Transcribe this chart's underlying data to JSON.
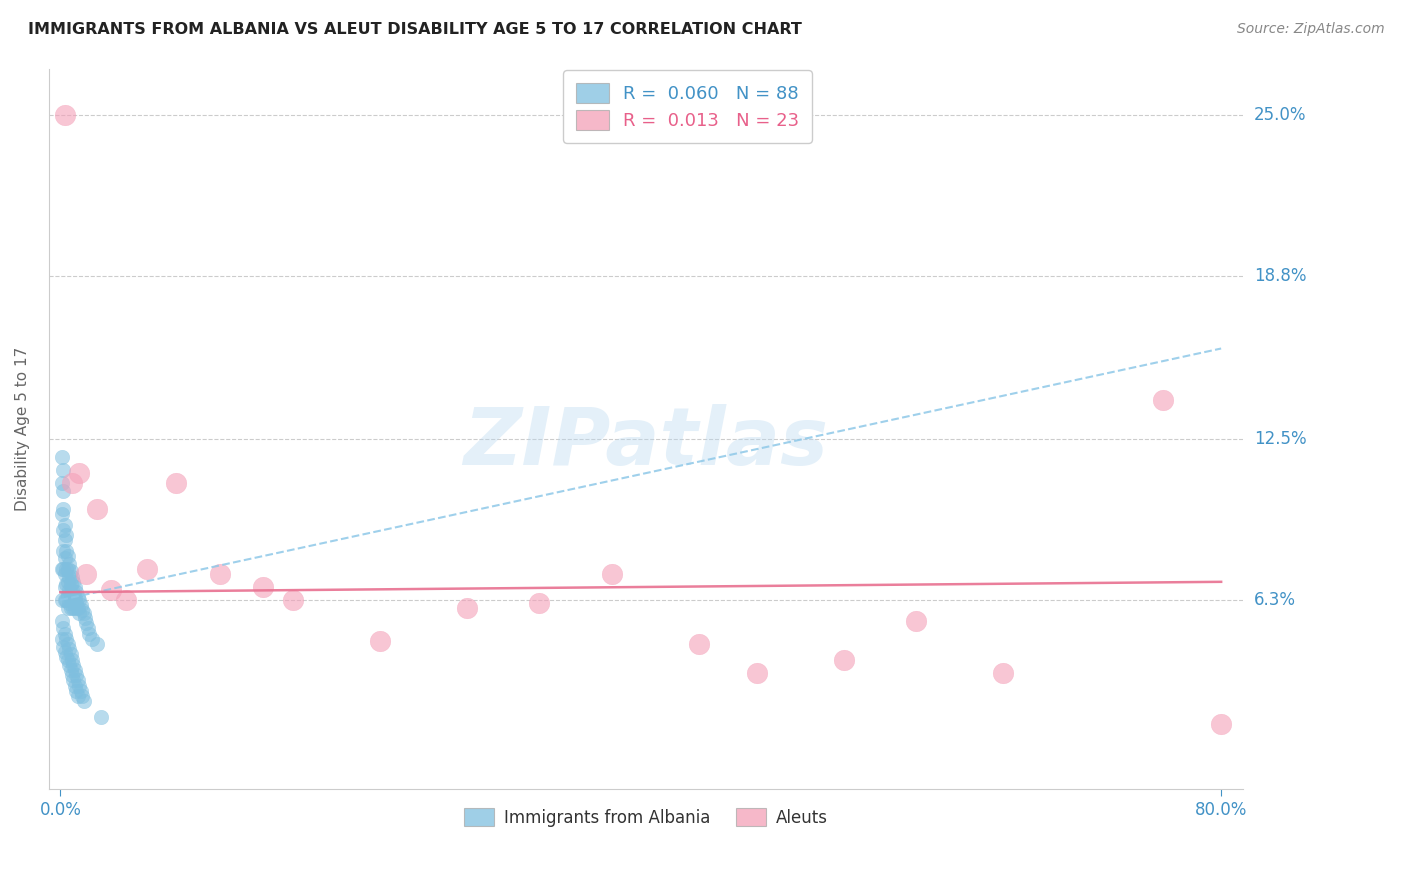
{
  "title": "IMMIGRANTS FROM ALBANIA VS ALEUT DISABILITY AGE 5 TO 17 CORRELATION CHART",
  "source": "Source: ZipAtlas.com",
  "ylabel": "Disability Age 5 to 17",
  "ytick_labels": [
    "6.3%",
    "12.5%",
    "18.8%",
    "25.0%"
  ],
  "ytick_values": [
    0.063,
    0.125,
    0.188,
    0.25
  ],
  "xlim": [
    0.0,
    0.8
  ],
  "ylim": [
    -0.01,
    0.268
  ],
  "R_albania": 0.06,
  "N_albania": 88,
  "R_aleut": 0.013,
  "N_aleut": 23,
  "watermark": "ZIPatlas",
  "color_blue": "#7fbfdf",
  "color_pink": "#f4a0b8",
  "color_blue_dark": "#4292c6",
  "color_pink_dark": "#e8608a",
  "color_trendline_blue": "#8ec8e8",
  "color_trendline_pink": "#e87090",
  "albania_x": [
    0.001,
    0.001,
    0.001,
    0.001,
    0.001,
    0.002,
    0.002,
    0.002,
    0.002,
    0.002,
    0.002,
    0.003,
    0.003,
    0.003,
    0.003,
    0.003,
    0.003,
    0.004,
    0.004,
    0.004,
    0.004,
    0.004,
    0.005,
    0.005,
    0.005,
    0.005,
    0.005,
    0.006,
    0.006,
    0.006,
    0.006,
    0.007,
    0.007,
    0.007,
    0.007,
    0.008,
    0.008,
    0.008,
    0.009,
    0.009,
    0.009,
    0.01,
    0.01,
    0.01,
    0.011,
    0.011,
    0.012,
    0.012,
    0.013,
    0.013,
    0.014,
    0.015,
    0.016,
    0.017,
    0.018,
    0.019,
    0.02,
    0.022,
    0.025,
    0.028,
    0.001,
    0.001,
    0.002,
    0.002,
    0.003,
    0.003,
    0.004,
    0.004,
    0.005,
    0.005,
    0.006,
    0.006,
    0.007,
    0.007,
    0.008,
    0.008,
    0.009,
    0.009,
    0.01,
    0.01,
    0.011,
    0.011,
    0.012,
    0.012,
    0.013,
    0.014,
    0.015,
    0.016
  ],
  "albania_y": [
    0.118,
    0.108,
    0.096,
    0.075,
    0.063,
    0.113,
    0.105,
    0.098,
    0.09,
    0.082,
    0.075,
    0.092,
    0.086,
    0.079,
    0.073,
    0.068,
    0.063,
    0.088,
    0.082,
    0.075,
    0.069,
    0.063,
    0.08,
    0.075,
    0.07,
    0.065,
    0.06,
    0.077,
    0.072,
    0.067,
    0.062,
    0.074,
    0.069,
    0.065,
    0.06,
    0.072,
    0.067,
    0.063,
    0.07,
    0.065,
    0.06,
    0.068,
    0.064,
    0.06,
    0.066,
    0.062,
    0.064,
    0.06,
    0.063,
    0.058,
    0.061,
    0.059,
    0.058,
    0.056,
    0.054,
    0.052,
    0.05,
    0.048,
    0.046,
    0.018,
    0.055,
    0.048,
    0.052,
    0.045,
    0.05,
    0.043,
    0.048,
    0.041,
    0.046,
    0.04,
    0.044,
    0.038,
    0.042,
    0.036,
    0.04,
    0.034,
    0.038,
    0.032,
    0.036,
    0.03,
    0.034,
    0.028,
    0.032,
    0.026,
    0.03,
    0.028,
    0.026,
    0.024
  ],
  "aleut_x": [
    0.003,
    0.008,
    0.013,
    0.018,
    0.025,
    0.035,
    0.045,
    0.06,
    0.08,
    0.11,
    0.14,
    0.16,
    0.22,
    0.28,
    0.33,
    0.38,
    0.44,
    0.48,
    0.54,
    0.59,
    0.65,
    0.76,
    0.8
  ],
  "aleut_y": [
    0.25,
    0.108,
    0.112,
    0.073,
    0.098,
    0.067,
    0.063,
    0.075,
    0.108,
    0.073,
    0.068,
    0.063,
    0.047,
    0.06,
    0.062,
    0.073,
    0.046,
    0.035,
    0.04,
    0.055,
    0.035,
    0.14,
    0.015
  ],
  "albania_trend_x": [
    0.0,
    0.8
  ],
  "albania_trend_y": [
    0.063,
    0.16
  ],
  "aleut_trend_x": [
    0.0,
    0.8
  ],
  "aleut_trend_y": [
    0.066,
    0.07
  ]
}
